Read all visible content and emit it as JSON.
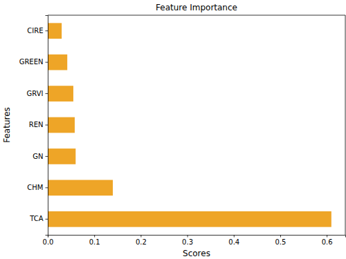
{
  "chart_data": {
    "type": "bar",
    "orientation": "horizontal",
    "title": "Feature Importance",
    "x_label": "Scores",
    "y_label": "Features",
    "categories": [
      "TCA",
      "CHM",
      "GN",
      "REN",
      "GRVI",
      "GREEN",
      "CIRE"
    ],
    "values": [
      0.61,
      0.14,
      0.06,
      0.058,
      0.055,
      0.042,
      0.03
    ],
    "color": "#eea527",
    "xlim": [
      0,
      0.64
    ],
    "xticks": [
      {
        "value": 0,
        "label": "0.0"
      },
      0.1,
      0.2,
      0.3,
      0.4,
      0.5,
      0.6
    ],
    "grid": false
  }
}
